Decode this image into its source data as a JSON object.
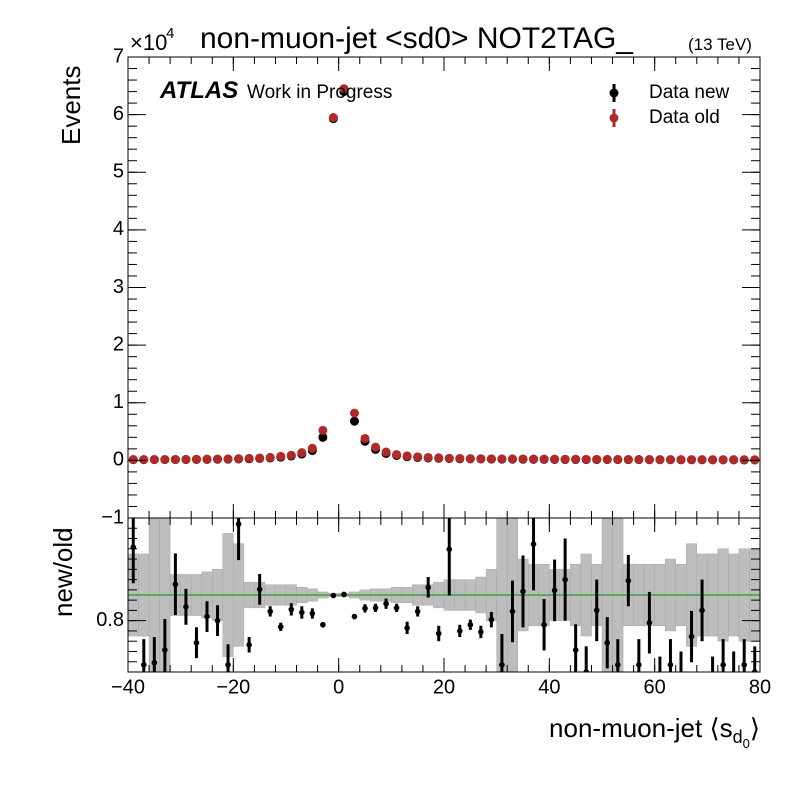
{
  "chart_data": [
    {
      "type": "scatter",
      "title": "non-muon-jet <sd0> NOT2TAG_",
      "title_suffix": "(13 TeV)",
      "ylabel": "Events",
      "y_multiplier": "×10",
      "y_multiplier_exp": "4",
      "atlas": "ATLAS",
      "atlas_note": "Work in Progress",
      "legend": "top-right",
      "xlim": [
        -40,
        80
      ],
      "xticks": [
        {
          "value": -40,
          "label": "−40"
        },
        {
          "value": -20,
          "label": "−20"
        },
        0,
        20,
        40,
        60,
        80
      ],
      "ylim": [
        -1,
        7
      ],
      "yticks": [
        {
          "value": -1,
          "label": "−1"
        },
        0,
        1,
        2,
        3,
        4,
        5,
        6,
        7
      ],
      "x": [
        -39,
        -37,
        -35,
        -33,
        -31,
        -29,
        -27,
        -25,
        -23,
        -21,
        -19,
        -17,
        -15,
        -13,
        -11,
        -9,
        -7,
        -5,
        -3,
        -1,
        1,
        3,
        5,
        7,
        9,
        11,
        13,
        15,
        17,
        19,
        21,
        23,
        25,
        27,
        29,
        31,
        33,
        35,
        37,
        39,
        41,
        43,
        45,
        47,
        49,
        51,
        53,
        55,
        57,
        59,
        61,
        63,
        65,
        67,
        69,
        71,
        73,
        75,
        77,
        79
      ],
      "series": [
        {
          "name": "Data new",
          "color": "#000000",
          "values": [
            0.012,
            0.012,
            0.013,
            0.013,
            0.014,
            0.015,
            0.016,
            0.017,
            0.019,
            0.021,
            0.024,
            0.028,
            0.034,
            0.043,
            0.056,
            0.075,
            0.11,
            0.17,
            0.4,
            5.93,
            6.4,
            0.68,
            0.33,
            0.19,
            0.12,
            0.085,
            0.063,
            0.05,
            0.042,
            0.036,
            0.032,
            0.028,
            0.026,
            0.024,
            0.022,
            0.021,
            0.02,
            0.019,
            0.018,
            0.017,
            0.016,
            0.015,
            0.015,
            0.014,
            0.014,
            0.013,
            0.013,
            0.012,
            0.012,
            0.011,
            0.011,
            0.011,
            0.01,
            0.01,
            0.01,
            0.009,
            0.009,
            0.009,
            0.008,
            0.008
          ]
        },
        {
          "name": "Data old",
          "color": "#b02a2a",
          "values": [
            0.013,
            0.014,
            0.015,
            0.015,
            0.016,
            0.017,
            0.019,
            0.021,
            0.023,
            0.026,
            0.03,
            0.035,
            0.042,
            0.052,
            0.07,
            0.09,
            0.135,
            0.21,
            0.52,
            5.95,
            6.45,
            0.82,
            0.38,
            0.23,
            0.145,
            0.1,
            0.078,
            0.061,
            0.05,
            0.045,
            0.036,
            0.033,
            0.031,
            0.029,
            0.027,
            0.026,
            0.025,
            0.024,
            0.023,
            0.022,
            0.021,
            0.02,
            0.019,
            0.018,
            0.017,
            0.017,
            0.016,
            0.016,
            0.015,
            0.015,
            0.014,
            0.014,
            0.013,
            0.013,
            0.013,
            0.012,
            0.012,
            0.012,
            0.011,
            0.011
          ]
        }
      ]
    },
    {
      "type": "ratio",
      "ylabel": "new/old",
      "xlabel": "non-muon-jet ⟨s",
      "xlabel_sub": "d",
      "xlabel_subsub": "0",
      "xlabel_end": "⟩",
      "xlim": [
        -40,
        80
      ],
      "xticks": [
        {
          "value": -40,
          "label": "−40"
        },
        {
          "value": -20,
          "label": "−20"
        },
        0,
        20,
        40,
        60,
        80
      ],
      "ylim": [
        0.7,
        1.0
      ],
      "yticks": [
        0.8
      ],
      "reference": 0.85,
      "reference_color": "#33aa33",
      "band_color": "#bdbdbd",
      "x": [
        -39,
        -37,
        -35,
        -33,
        -31,
        -29,
        -27,
        -25,
        -23,
        -21,
        -19,
        -17,
        -15,
        -13,
        -11,
        -9,
        -7,
        -5,
        -3,
        -1,
        1,
        3,
        5,
        7,
        9,
        11,
        13,
        15,
        17,
        19,
        21,
        23,
        25,
        27,
        29,
        31,
        33,
        35,
        37,
        39,
        41,
        43,
        45,
        47,
        49,
        51,
        53,
        55,
        57,
        59,
        61,
        63,
        65,
        67,
        69,
        71,
        73,
        75,
        77,
        79
      ],
      "values": [
        0.943,
        0.714,
        0.718,
        0.743,
        0.871,
        0.827,
        0.757,
        0.808,
        0.8,
        0.714,
        0.988,
        0.753,
        0.861,
        0.818,
        0.788,
        0.822,
        0.816,
        0.814,
        0.792,
        0.849,
        0.851,
        0.808,
        0.824,
        0.825,
        0.833,
        0.825,
        0.786,
        0.818,
        0.865,
        0.775,
        0.939,
        0.78,
        0.792,
        0.778,
        0.802,
        0.714,
        0.818,
        0.857,
        0.949,
        0.792,
        0.859,
        0.88,
        0.743,
        0.7,
        0.82,
        0.757,
        0.714,
        0.878,
        0.714,
        0.796,
        0.68,
        0.714,
        0.69,
        0.769,
        0.82,
        0.68,
        0.714,
        0.69,
        0.714,
        0.7
      ],
      "errors": [
        0.07,
        0.05,
        0.05,
        0.06,
        0.06,
        0.035,
        0.03,
        0.03,
        0.03,
        0.04,
        0.07,
        0.015,
        0.03,
        0.01,
        0.008,
        0.012,
        0.012,
        0.01,
        0.005,
        0.003,
        0.003,
        0.005,
        0.008,
        0.008,
        0.01,
        0.008,
        0.012,
        0.01,
        0.02,
        0.015,
        0.09,
        0.012,
        0.01,
        0.012,
        0.015,
        0.06,
        0.06,
        0.07,
        0.09,
        0.05,
        0.06,
        0.08,
        0.05,
        0.05,
        0.06,
        0.05,
        0.05,
        0.05,
        0.05,
        0.06,
        0.05,
        0.05,
        0.05,
        0.05,
        0.06,
        0.05,
        0.05,
        0.05,
        0.05,
        0.05
      ],
      "band": [
        0.08,
        0.08,
        0.15,
        0.15,
        0.04,
        0.04,
        0.04,
        0.045,
        0.05,
        0.12,
        0.1,
        0.025,
        0.025,
        0.02,
        0.02,
        0.02,
        0.015,
        0.012,
        0.006,
        0.003,
        0.003,
        0.006,
        0.01,
        0.012,
        0.012,
        0.015,
        0.015,
        0.02,
        0.02,
        0.025,
        0.03,
        0.03,
        0.03,
        0.035,
        0.05,
        0.15,
        0.15,
        0.07,
        0.06,
        0.06,
        0.05,
        0.05,
        0.06,
        0.08,
        0.06,
        0.15,
        0.15,
        0.06,
        0.06,
        0.06,
        0.06,
        0.07,
        0.06,
        0.1,
        0.08,
        0.08,
        0.09,
        0.08,
        0.09,
        0.09
      ]
    }
  ]
}
